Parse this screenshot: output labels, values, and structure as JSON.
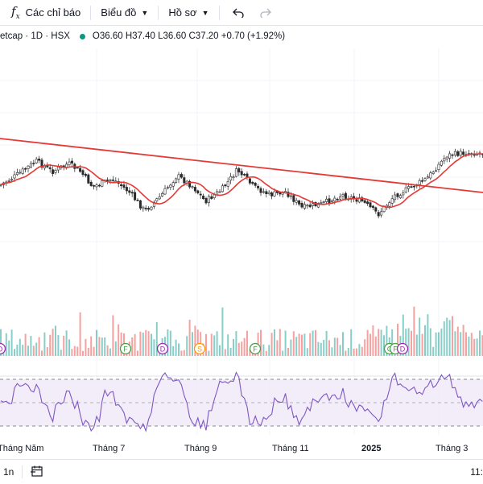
{
  "toolbar": {
    "indicators_label": "Các chỉ báo",
    "chart_label": "Biểu đồ",
    "profile_label": "Hồ sơ"
  },
  "legend": {
    "symbol": "etcap · 1D · HSX",
    "ohlc": "O36.60 H37.40 L36.60 C37.20 +0.70 (+1.92%)"
  },
  "colors": {
    "up": "#26a69a",
    "down": "#ef5350",
    "ma": "#e53935",
    "trendline": "#e53935",
    "rsi": "#7e57c2",
    "rsi_band": "#ede7f6",
    "status_dot": "#089981"
  },
  "chart_data": {
    "type": "candlestick",
    "x_labels": [
      "Tháng Năm",
      "Tháng 7",
      "Tháng 9",
      "Tháng 11",
      "2025",
      "Tháng 3"
    ],
    "event_markers": [
      "D",
      "F",
      "D",
      "S",
      "F",
      "C",
      "F",
      "D"
    ],
    "indicators": [
      "Moving average",
      "Volume",
      "RSI"
    ]
  },
  "bottom": {
    "range_label": "1n",
    "clock": "11:"
  }
}
